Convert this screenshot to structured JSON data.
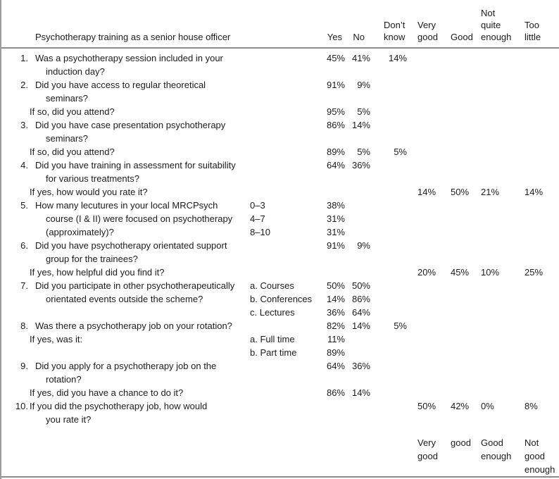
{
  "colors": {
    "rule": "#8c8c8c",
    "border_left": "#9e9e9e",
    "text": "#1b1b1b"
  },
  "table": {
    "title": "Psychotherapy training as a senior house officer",
    "columns": {
      "yes": "Yes",
      "no": "No",
      "dk": "Don’t\nknow",
      "vg": "Very\ngood",
      "good": "Good",
      "nqe": "Not\nquite\nenough",
      "tl": "Too\nlittle"
    },
    "rows": [
      {
        "num": "1.",
        "q": "Was a psychotherapy session included in your",
        "yes": "45%",
        "no": "41%",
        "dk": "14%"
      },
      {
        "q": "induction day?",
        "indent": true
      },
      {
        "num": "2.",
        "q": "Did you have access to regular theoretical",
        "yes": "91%",
        "no": "9%"
      },
      {
        "q": "seminars?",
        "indent": true
      },
      {
        "q": "If so, did you attend?",
        "outdent": true,
        "yes": "95%",
        "no": "5%"
      },
      {
        "num": "3.",
        "q": "Did you have case presentation psychotherapy",
        "yes": "86%",
        "no": "14%"
      },
      {
        "q": "seminars?",
        "indent": true
      },
      {
        "q": "If so, did you attend?",
        "outdent": true,
        "yes": "89%",
        "no": "5%",
        "dk": "5%"
      },
      {
        "num": "4.",
        "q": "Did you have training in assessment for suitability",
        "yes": "64%",
        "no": "36%"
      },
      {
        "q": "for various treatments?",
        "indent": true
      },
      {
        "q": "If yes, how would you rate it?",
        "outdent": true,
        "vg": "14%",
        "good": "50%",
        "nqe": "21%",
        "tl": "14%"
      },
      {
        "num": "5.",
        "q": "How many lecutures in your local MRCPsych",
        "sub": "0–3",
        "yes": "38%"
      },
      {
        "q": "course (I & II) were focused on psychotherapy",
        "indent": true,
        "sub": "4–7",
        "yes": "31%"
      },
      {
        "q": "(approximately)?",
        "indent": true,
        "sub": "8–10",
        "yes": "31%"
      },
      {
        "num": "6.",
        "q": "Did you have psychotherapy orientated support",
        "yes": "91%",
        "no": "9%"
      },
      {
        "q": "group for the trainees?",
        "indent": true
      },
      {
        "q": "If yes, how helpful did you find it?",
        "outdent": true,
        "vg": "20%",
        "good": "45%",
        "nqe": "10%",
        "tl": "25%"
      },
      {
        "num": "7.",
        "q": "Did you participate in other psychotherapeutically",
        "sub": "a. Courses",
        "yes": "50%",
        "no": "50%"
      },
      {
        "q": "orientated events outside the scheme?",
        "indent": true,
        "sub": "b. Conferences",
        "yes": "14%",
        "no": "86%"
      },
      {
        "sub": "c. Lectures",
        "yes": "36%",
        "no": "64%"
      },
      {
        "num": "8.",
        "q": "Was there a psychotherapy job on your rotation?",
        "yes": "82%",
        "no": "14%",
        "dk": "5%"
      },
      {
        "q": "If yes, was it:",
        "outdent": true,
        "sub": "a. Full time",
        "yes": "11%"
      },
      {
        "sub": "b. Part time",
        "yes": "89%"
      },
      {
        "num": "9.",
        "q": "Did you apply for a psychotherapy job on the",
        "yes": "64%",
        "no": "36%"
      },
      {
        "q": "rotation?",
        "indent": true
      },
      {
        "q": "If yes, did you have a chance to do it?",
        "outdent": true,
        "yes": "86%",
        "no": "14%"
      },
      {
        "num": "10.",
        "q": "If you did the psychotherapy job, how would",
        "outdent": true,
        "vg": "50%",
        "good": "42%",
        "nqe": "0%",
        "tl": "8%"
      },
      {
        "q": "you rate it?",
        "indent": true
      },
      {
        "spacer": true
      },
      {
        "footer": true,
        "vg": "Very\ngood",
        "good": "good",
        "nqe": "Good\nenough",
        "tl": "Not\ngood\nenough"
      }
    ]
  }
}
